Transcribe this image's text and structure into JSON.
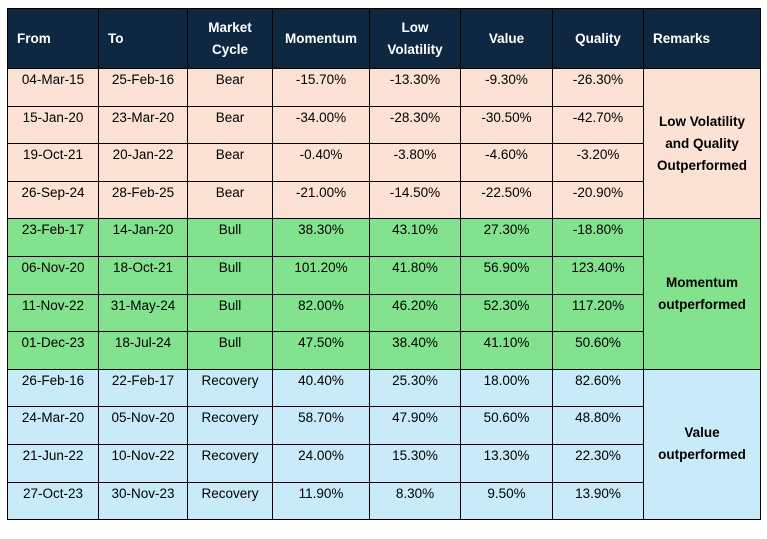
{
  "headers": {
    "from": "From",
    "to": "To",
    "market_cycle_line1": "Market",
    "market_cycle_line2": "Cycle",
    "momentum": "Momentum",
    "low_vol_line1": "Low",
    "low_vol_line2": "Volatility",
    "value": "Value",
    "quality": "Quality",
    "remarks": "Remarks"
  },
  "colors": {
    "header_bg": "#0e2841",
    "bear_bg": "#fbe2d5",
    "bull_bg": "#83e28e",
    "recovery_bg": "#c9eaf9"
  },
  "rows": [
    {
      "from": "04-Mar-15",
      "to": "25-Feb-16",
      "cycle": "Bear",
      "momentum": "-15.70%",
      "low_volatility": "-13.30%",
      "value": "-9.30%",
      "quality": "-26.30%"
    },
    {
      "from": "15-Jan-20",
      "to": "23-Mar-20",
      "cycle": "Bear",
      "momentum": "-34.00%",
      "low_volatility": "-28.30%",
      "value": "-30.50%",
      "quality": "-42.70%"
    },
    {
      "from": "19-Oct-21",
      "to": "20-Jan-22",
      "cycle": "Bear",
      "momentum": "-0.40%",
      "low_volatility": "-3.80%",
      "value": "-4.60%",
      "quality": "-3.20%"
    },
    {
      "from": "26-Sep-24",
      "to": "28-Feb-25",
      "cycle": "Bear",
      "momentum": "-21.00%",
      "low_volatility": "-14.50%",
      "value": "-22.50%",
      "quality": "-20.90%"
    },
    {
      "from": "23-Feb-17",
      "to": "14-Jan-20",
      "cycle": "Bull",
      "momentum": "38.30%",
      "low_volatility": "43.10%",
      "value": "27.30%",
      "quality": "-18.80%"
    },
    {
      "from": "06-Nov-20",
      "to": "18-Oct-21",
      "cycle": "Bull",
      "momentum": "101.20%",
      "low_volatility": "41.80%",
      "value": "56.90%",
      "quality": "123.40%"
    },
    {
      "from": "11-Nov-22",
      "to": "31-May-24",
      "cycle": "Bull",
      "momentum": "82.00%",
      "low_volatility": "46.20%",
      "value": "52.30%",
      "quality": "117.20%"
    },
    {
      "from": "01-Dec-23",
      "to": "18-Jul-24",
      "cycle": "Bull",
      "momentum": "47.50%",
      "low_volatility": "38.40%",
      "value": "41.10%",
      "quality": "50.60%"
    },
    {
      "from": "26-Feb-16",
      "to": "22-Feb-17",
      "cycle": "Recovery",
      "momentum": "40.40%",
      "low_volatility": "25.30%",
      "value": "18.00%",
      "quality": "82.60%"
    },
    {
      "from": "24-Mar-20",
      "to": "05-Nov-20",
      "cycle": "Recovery",
      "momentum": "58.70%",
      "low_volatility": "47.90%",
      "value": "50.60%",
      "quality": "48.80%"
    },
    {
      "from": "21-Jun-22",
      "to": "10-Nov-22",
      "cycle": "Recovery",
      "momentum": "24.00%",
      "low_volatility": "15.30%",
      "value": "13.30%",
      "quality": "22.30%"
    },
    {
      "from": "27-Oct-23",
      "to": "30-Nov-23",
      "cycle": "Recovery",
      "momentum": "11.90%",
      "low_volatility": "8.30%",
      "value": "9.50%",
      "quality": "13.90%"
    }
  ],
  "remarks": {
    "bear": [
      "Low Volatility",
      "and Quality",
      "Outperformed"
    ],
    "bull": [
      "Momentum",
      "outperformed"
    ],
    "recovery": [
      "Value",
      "outperformed"
    ]
  }
}
